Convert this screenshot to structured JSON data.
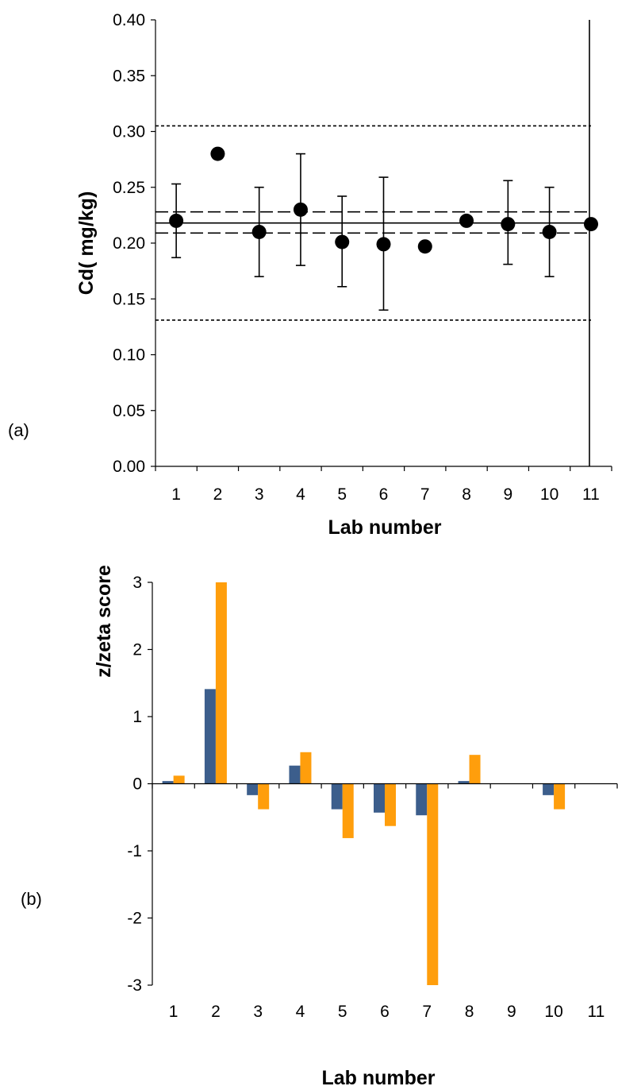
{
  "chart_data": [
    {
      "type": "scatter",
      "panel_label": "(a)",
      "xlabel": "Lab number",
      "ylabel": "Cd( mg/kg)",
      "ylim": [
        0,
        0.4
      ],
      "yticks": [
        "0.00",
        "0.05",
        "0.10",
        "0.15",
        "0.20",
        "0.25",
        "0.30",
        "0.35",
        "0.40"
      ],
      "categories": [
        "1",
        "2",
        "3",
        "4",
        "5",
        "6",
        "7",
        "8",
        "9",
        "10",
        "11"
      ],
      "values": [
        0.22,
        0.28,
        0.21,
        0.23,
        0.201,
        0.199,
        0.197,
        0.22,
        0.217,
        0.21,
        0.217
      ],
      "error_low": [
        0.187,
        null,
        0.17,
        0.18,
        0.161,
        0.14,
        null,
        null,
        0.181,
        0.17,
        0.0
      ],
      "error_high": [
        0.253,
        null,
        0.25,
        0.28,
        0.242,
        0.259,
        null,
        null,
        0.256,
        0.25,
        0.4
      ],
      "reference_lines": [
        {
          "style": "solid",
          "value": 0.218
        },
        {
          "style": "dashed",
          "value": 0.228
        },
        {
          "style": "dashed",
          "value": 0.209
        },
        {
          "style": "dotted",
          "value": 0.305
        },
        {
          "style": "dotted",
          "value": 0.131
        }
      ],
      "grid": false
    },
    {
      "type": "bar",
      "panel_label": "(b)",
      "xlabel": "Lab number",
      "ylabel": "z/zeta score",
      "ylim": [
        -3,
        3
      ],
      "yticks": [
        "-3",
        "-2",
        "-1",
        "0",
        "1",
        "2",
        "3"
      ],
      "categories": [
        "1",
        "2",
        "3",
        "4",
        "5",
        "6",
        "7",
        "8",
        "9",
        "10",
        "11"
      ],
      "series": [
        {
          "color": "#3c5e8c",
          "values": [
            0.04,
            1.41,
            -0.17,
            0.27,
            -0.38,
            -0.43,
            -0.47,
            0.04,
            0,
            -0.17,
            0
          ]
        },
        {
          "color": "#ff9e0c",
          "values": [
            0.12,
            3.0,
            -0.38,
            0.47,
            -0.81,
            -0.63,
            -3.0,
            0.43,
            0,
            -0.38,
            0
          ]
        }
      ],
      "grid": false
    }
  ]
}
